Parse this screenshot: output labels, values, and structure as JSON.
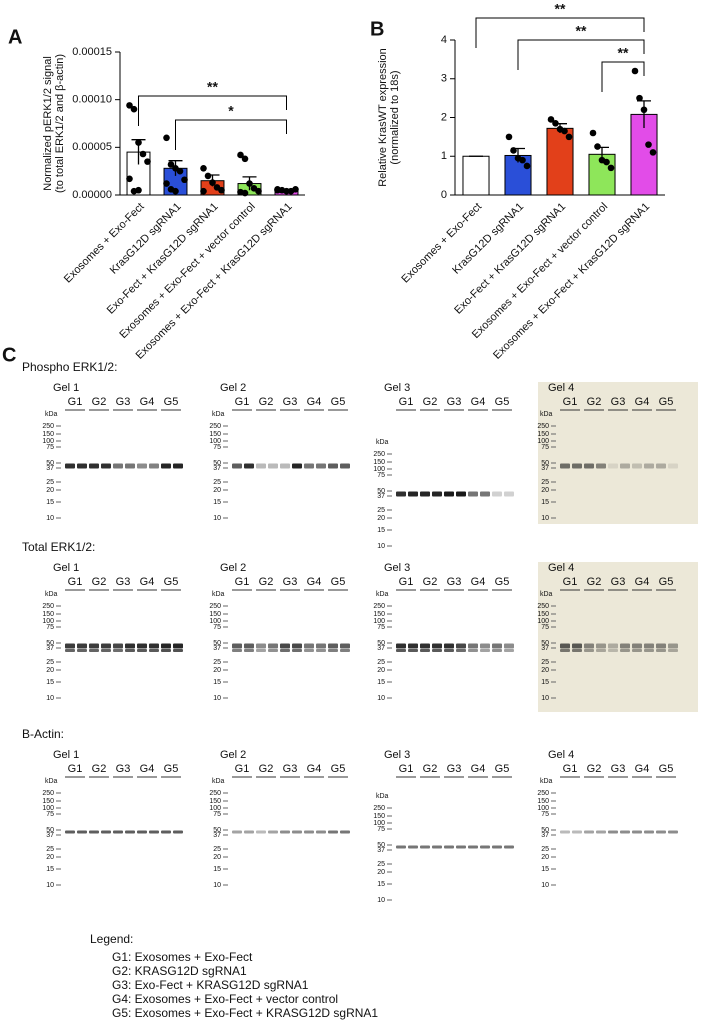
{
  "chart_data": [
    {
      "type": "bar",
      "panel_label": "A",
      "y_label": [
        "Normalized pERK1/2 signal",
        "(to total ERK1/2 and β-actin)"
      ],
      "categories": [
        "Exosomes + Exo-Fect",
        "KrasG12D sgRNA1",
        "Exo-Fect + KrasG12D sgRNA1",
        "Exosomes + Exo-Fect + vector control",
        "Exosomes + Exo-Fect + KrasG12D sgRNA1"
      ],
      "colors": [
        "#ffffff",
        "#2a4fd8",
        "#e2401a",
        "#8ee65a",
        "#e24ce8"
      ],
      "values": [
        4.5e-05,
        2.8e-05,
        1.5e-05,
        1.2e-05,
        5e-06
      ],
      "errors": [
        1.3e-05,
        8e-06,
        6e-06,
        7e-06,
        1e-06
      ],
      "points": [
        [
          9.4e-05,
          9e-05,
          5.5e-05,
          4.3e-05,
          3.5e-05,
          1.7e-05,
          4e-06,
          5e-06
        ],
        [
          6e-05,
          3.2e-05,
          2.8e-05,
          2.5e-05,
          1.6e-05,
          1.2e-05,
          6e-06,
          4e-06
        ],
        [
          2.8e-05,
          2e-05,
          1.3e-05,
          8e-06,
          5e-06,
          4e-06
        ],
        [
          4.2e-05,
          3.8e-05,
          1.2e-05,
          7e-06,
          4e-06,
          3e-06,
          2e-06
        ],
        [
          6e-06,
          5e-06,
          4e-06,
          4e-06,
          6e-06,
          5e-06
        ]
      ],
      "ylim": [
        0,
        0.00015
      ],
      "yticks": [
        {
          "value": 0,
          "label": "0.00000"
        },
        {
          "value": 5e-05,
          "label": "0.00005"
        },
        {
          "value": 0.0001,
          "label": "0.00010"
        },
        {
          "value": 0.00015,
          "label": "0.00015"
        }
      ],
      "annotations": [
        {
          "text": "**",
          "from": 0,
          "to": 4
        },
        {
          "text": "*",
          "from": 1,
          "to": 4
        }
      ]
    },
    {
      "type": "bar",
      "panel_label": "B",
      "y_label": [
        "Relative KrasWT expression",
        "(normalized to 18s)"
      ],
      "categories": [
        "Exosomes + Exo-Fect",
        "KrasG12D sgRNA1",
        "Exo-Fect + KrasG12D sgRNA1",
        "Exosomes + Exo-Fect + vector control",
        "Exosomes + Exo-Fect + KrasG12D sgRNA1"
      ],
      "colors": [
        "#ffffff",
        "#2a4fd8",
        "#e2401a",
        "#8ee65a",
        "#e24ce8"
      ],
      "values": [
        1,
        1.02,
        1.72,
        1.05,
        2.08
      ],
      "errors": [
        0,
        0.18,
        0.12,
        0.18,
        0.35
      ],
      "points": [
        [],
        [
          1.5,
          1.15,
          0.95,
          0.9,
          0.75
        ],
        [
          1.95,
          1.85,
          1.7,
          1.65,
          1.5
        ],
        [
          1.6,
          1.25,
          0.9,
          0.85,
          0.7
        ],
        [
          3.2,
          2.5,
          2.2,
          1.3,
          1.1
        ]
      ],
      "ylim": [
        0,
        4
      ],
      "yticks": [
        0,
        1,
        2,
        3,
        4
      ],
      "annotations": [
        {
          "text": "**",
          "from": 0,
          "to": 4
        },
        {
          "text": "**",
          "from": 1,
          "to": 4
        },
        {
          "text": "**",
          "from": 3,
          "to": 4
        }
      ]
    }
  ],
  "blots": {
    "panel_label": "C",
    "rows": [
      {
        "title": "Phospho ERK1/2:"
      },
      {
        "title": "Total ERK1/2:"
      },
      {
        "title": "B-Actin:"
      }
    ],
    "gels": [
      "Gel 1",
      "Gel 2",
      "Gel 3",
      "Gel 4"
    ],
    "lanes": [
      "G1",
      "G2",
      "G3",
      "G4",
      "G5"
    ],
    "kda": "kDa",
    "markers": [
      "250",
      "150",
      "100",
      "75",
      "50",
      "37",
      "25",
      "20",
      "15",
      "10"
    ]
  },
  "legend": {
    "title": "Legend:",
    "items": [
      "G1: Exosomes + Exo-Fect",
      "G2: KRASG12D sgRNA1",
      "G3: Exo-Fect + KRASG12D sgRNA1",
      "G4: Exosomes + Exo-Fect + vector control",
      "G5: Exosomes + Exo-Fect + KRASG12D sgRNA1"
    ]
  }
}
